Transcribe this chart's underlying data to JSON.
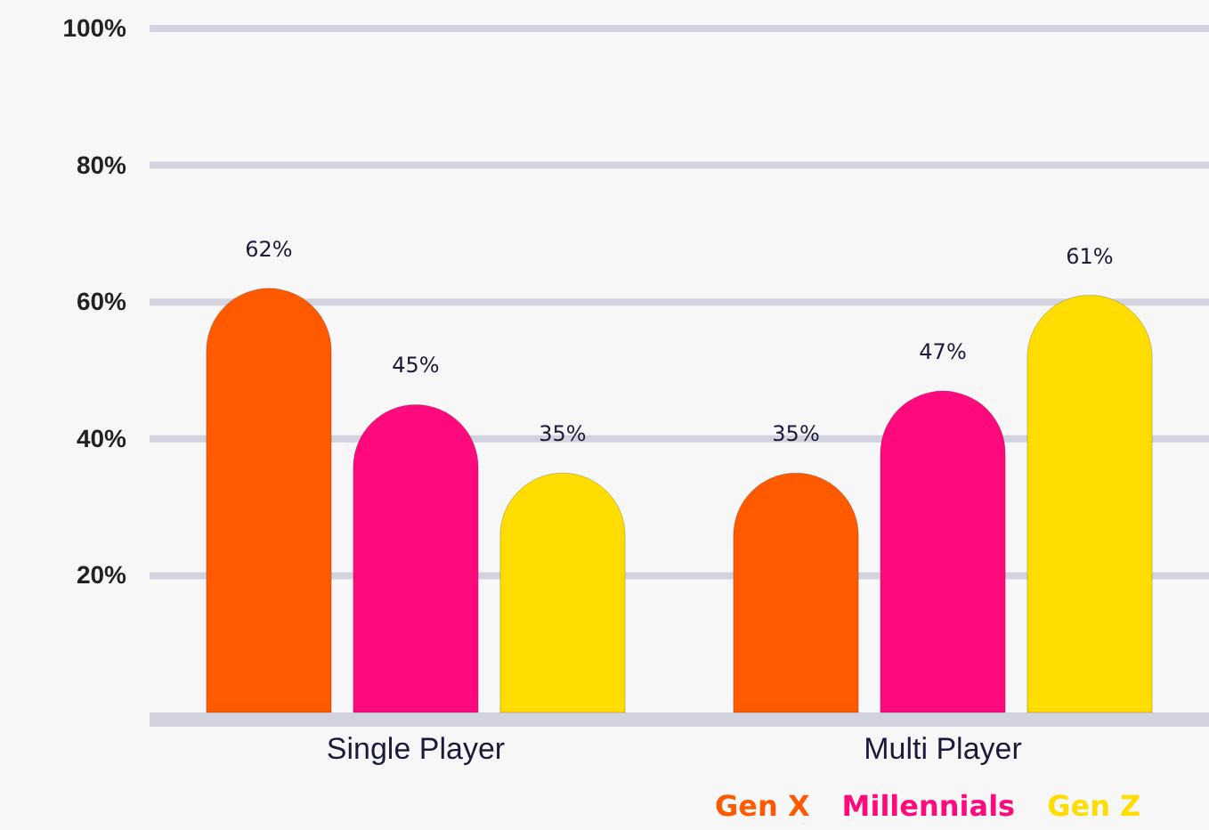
{
  "chart_data": {
    "type": "bar",
    "categories": [
      "Single Player",
      "Multi Player"
    ],
    "series": [
      {
        "name": "Gen X",
        "color": "#ff5a00",
        "values": [
          62,
          35
        ],
        "value_labels": [
          "62%",
          "35%"
        ]
      },
      {
        "name": "Millennials",
        "color": "#ff0a7d",
        "values": [
          45,
          47
        ],
        "value_labels": [
          "45%",
          "47%"
        ]
      },
      {
        "name": "Gen Z",
        "color": "#ffdd00",
        "values": [
          35,
          61
        ],
        "value_labels": [
          "35%",
          "61%"
        ]
      }
    ],
    "ylim": [
      0,
      100
    ],
    "yticks": [
      {
        "value": 20,
        "label": "20%"
      },
      {
        "value": 40,
        "label": "40%"
      },
      {
        "value": 60,
        "label": "60%"
      },
      {
        "value": 80,
        "label": "80%"
      },
      {
        "value": 100,
        "label": "100%"
      }
    ],
    "grid": "y",
    "legend": "bottom"
  }
}
